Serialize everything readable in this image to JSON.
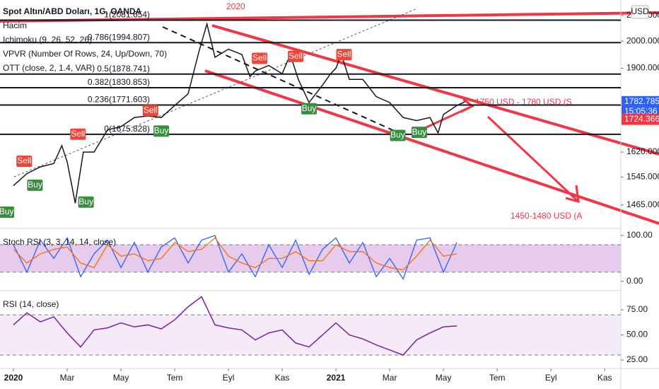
{
  "chart_data": [
    {
      "type": "line",
      "title": "Spot Altın/ABD Doları, 1G, OANDA",
      "indicators": [
        "Hacim",
        "Ichimoku (9, 26, 52, 26)",
        "VPVR (Number Of Rows, 24, Up/Down, 70)",
        "OTT (close, 2, 1.4, VAR)"
      ],
      "x": [
        0,
        0.5,
        1,
        1.5,
        1.8,
        2,
        2.3,
        2.6,
        3,
        3.5,
        4,
        4.5,
        5,
        5.5,
        6,
        6.5,
        6.9,
        7.2,
        7.5,
        8,
        8.5,
        8.8,
        9,
        9.5,
        10,
        10.3,
        10.6,
        11,
        11.5,
        11.8,
        12,
        12.2,
        12.5,
        13,
        13.5,
        14,
        14.5,
        15,
        15.5,
        15.8,
        16,
        16.5,
        16.8
      ],
      "values": [
        1520,
        1555,
        1575,
        1585,
        1640,
        1590,
        1470,
        1620,
        1620,
        1690,
        1700,
        1730,
        1735,
        1730,
        1770,
        1810,
        1960,
        2067,
        1940,
        1970,
        1950,
        1870,
        1890,
        1910,
        1880,
        1950,
        1860,
        1780,
        1840,
        1880,
        1900,
        1950,
        1860,
        1860,
        1800,
        1780,
        1730,
        1720,
        1730,
        1680,
        1740,
        1770,
        1782.785
      ],
      "color": "#131722",
      "log": true,
      "xlim": [
        -0.5,
        22.6
      ],
      "xticks": [
        {
          "value": 0,
          "label": "2020"
        },
        {
          "value": 2,
          "label": "Mar"
        },
        {
          "value": 4,
          "label": "May"
        },
        {
          "value": 6,
          "label": "Tem"
        },
        {
          "value": 8,
          "label": "Eyl"
        },
        {
          "value": 10,
          "label": "Kas"
        },
        {
          "value": 12,
          "label": "2021"
        },
        {
          "value": 14,
          "label": "Mar"
        },
        {
          "value": 16,
          "label": "May"
        },
        {
          "value": 18,
          "label": "Tem"
        },
        {
          "value": 20,
          "label": "Eyl"
        },
        {
          "value": 22,
          "label": "Kas"
        }
      ],
      "ylim": [
        1403,
        2163
      ],
      "yticks": [
        {
          "value": 1465,
          "label": "1465.000"
        },
        {
          "value": 1545,
          "label": "1545.000"
        },
        {
          "value": 1620,
          "label": "1620.000"
        },
        {
          "value": 1900,
          "label": "1900.000"
        },
        {
          "value": 2000,
          "label": "2000.000"
        },
        {
          "value": 2100,
          "label": "2100.000"
        }
      ],
      "fib_levels": [
        {
          "label": "1(2081.654)",
          "value": 2081.654
        },
        {
          "label": "0.786(1994.807)",
          "value": 1994.807
        },
        {
          "label": "0.5(1878.741)",
          "value": 1878.741
        },
        {
          "label": "0.382(1830.853)",
          "value": 1830.853
        },
        {
          "label": "0.236(1771.603)",
          "value": 1771.603
        },
        {
          "label": "0(1675.828)",
          "value": 1675.828
        }
      ],
      "signals": [
        {
          "label": "Buy",
          "x": -0.26,
          "value": 1445
        },
        {
          "label": "Sell",
          "x": 0.4,
          "value": 1592
        },
        {
          "label": "Buy",
          "x": 0.8,
          "value": 1521
        },
        {
          "label": "Sell",
          "x": 2.4,
          "value": 1676
        },
        {
          "label": "Buy",
          "x": 2.7,
          "value": 1473
        },
        {
          "label": "Sell",
          "x": 5.1,
          "value": 1753
        },
        {
          "label": "Buy",
          "x": 5.5,
          "value": 1686
        },
        {
          "label": "Sell",
          "x": 9.16,
          "value": 1936
        },
        {
          "label": "Sell",
          "x": 10.5,
          "value": 1943
        },
        {
          "label": "Buy",
          "x": 11.0,
          "value": 1759
        },
        {
          "label": "Sell",
          "x": 12.3,
          "value": 1950
        },
        {
          "label": "Buy",
          "x": 14.3,
          "value": 1672
        },
        {
          "label": "Buy",
          "x": 15.1,
          "value": 1682
        }
      ],
      "price_labels": [
        1782.785,
        1724.366
      ],
      "countdown": "15:05:36",
      "annotations": [
        "2020",
        "1750 USD - 1780 USD (S",
        "1450-1480 USD (A"
      ],
      "currency": "USD"
    },
    {
      "type": "line",
      "title": "Stoch RSI (3, 3, 14, 14, close)",
      "x": [
        0,
        0.5,
        1,
        1.5,
        2,
        2.5,
        3,
        3.5,
        4,
        4.5,
        5,
        5.5,
        6,
        6.5,
        7,
        7.5,
        8,
        8.5,
        9,
        9.5,
        10,
        10.5,
        11,
        11.5,
        12,
        12.5,
        13,
        13.5,
        14,
        14.5,
        15,
        15.5,
        16,
        16.5
      ],
      "series": [
        {
          "color": "#2962ff",
          "values": [
            80,
            20,
            90,
            50,
            95,
            10,
            60,
            90,
            30,
            85,
            20,
            75,
            95,
            40,
            90,
            100,
            20,
            60,
            10,
            80,
            30,
            90,
            15,
            70,
            95,
            40,
            85,
            10,
            50,
            5,
            90,
            95,
            20,
            85
          ]
        },
        {
          "color": "#ff6d00",
          "values": [
            70,
            40,
            60,
            70,
            75,
            40,
            30,
            80,
            55,
            60,
            45,
            50,
            85,
            65,
            70,
            95,
            55,
            40,
            30,
            50,
            50,
            65,
            45,
            45,
            80,
            65,
            65,
            40,
            30,
            25,
            55,
            90,
            55,
            60
          ]
        }
      ],
      "xlim": [
        -0.5,
        22.6
      ],
      "ylim": [
        -19,
        114
      ],
      "yticks": [
        {
          "value": 0,
          "label": "0.00"
        },
        {
          "value": 100,
          "label": "100.00"
        }
      ],
      "bands": [
        20,
        80
      ]
    },
    {
      "type": "line",
      "title": "RSI (14, close)",
      "x": [
        0,
        0.5,
        1,
        1.5,
        2,
        2.5,
        3,
        3.5,
        4,
        4.5,
        5,
        5.5,
        6,
        6.5,
        7,
        7.5,
        8,
        8.5,
        9,
        9.5,
        10,
        10.5,
        11,
        11.5,
        12,
        12.5,
        13,
        13.5,
        14,
        14.5,
        15,
        15.5,
        16,
        16.5
      ],
      "values": [
        60,
        72,
        63,
        68,
        52,
        38,
        55,
        57,
        62,
        58,
        60,
        56,
        65,
        78,
        88,
        60,
        57,
        55,
        45,
        52,
        55,
        42,
        38,
        50,
        62,
        50,
        46,
        40,
        35,
        30,
        45,
        52,
        58,
        59
      ],
      "color": "#7b1fa2",
      "xlim": [
        -0.5,
        22.6
      ],
      "ylim": [
        17.3,
        93.3
      ],
      "yticks": [
        {
          "value": 25,
          "label": "25.00"
        },
        {
          "value": 50,
          "label": "50.00"
        },
        {
          "value": 75,
          "label": "75.00"
        }
      ],
      "bands": [
        30,
        70
      ]
    }
  ]
}
